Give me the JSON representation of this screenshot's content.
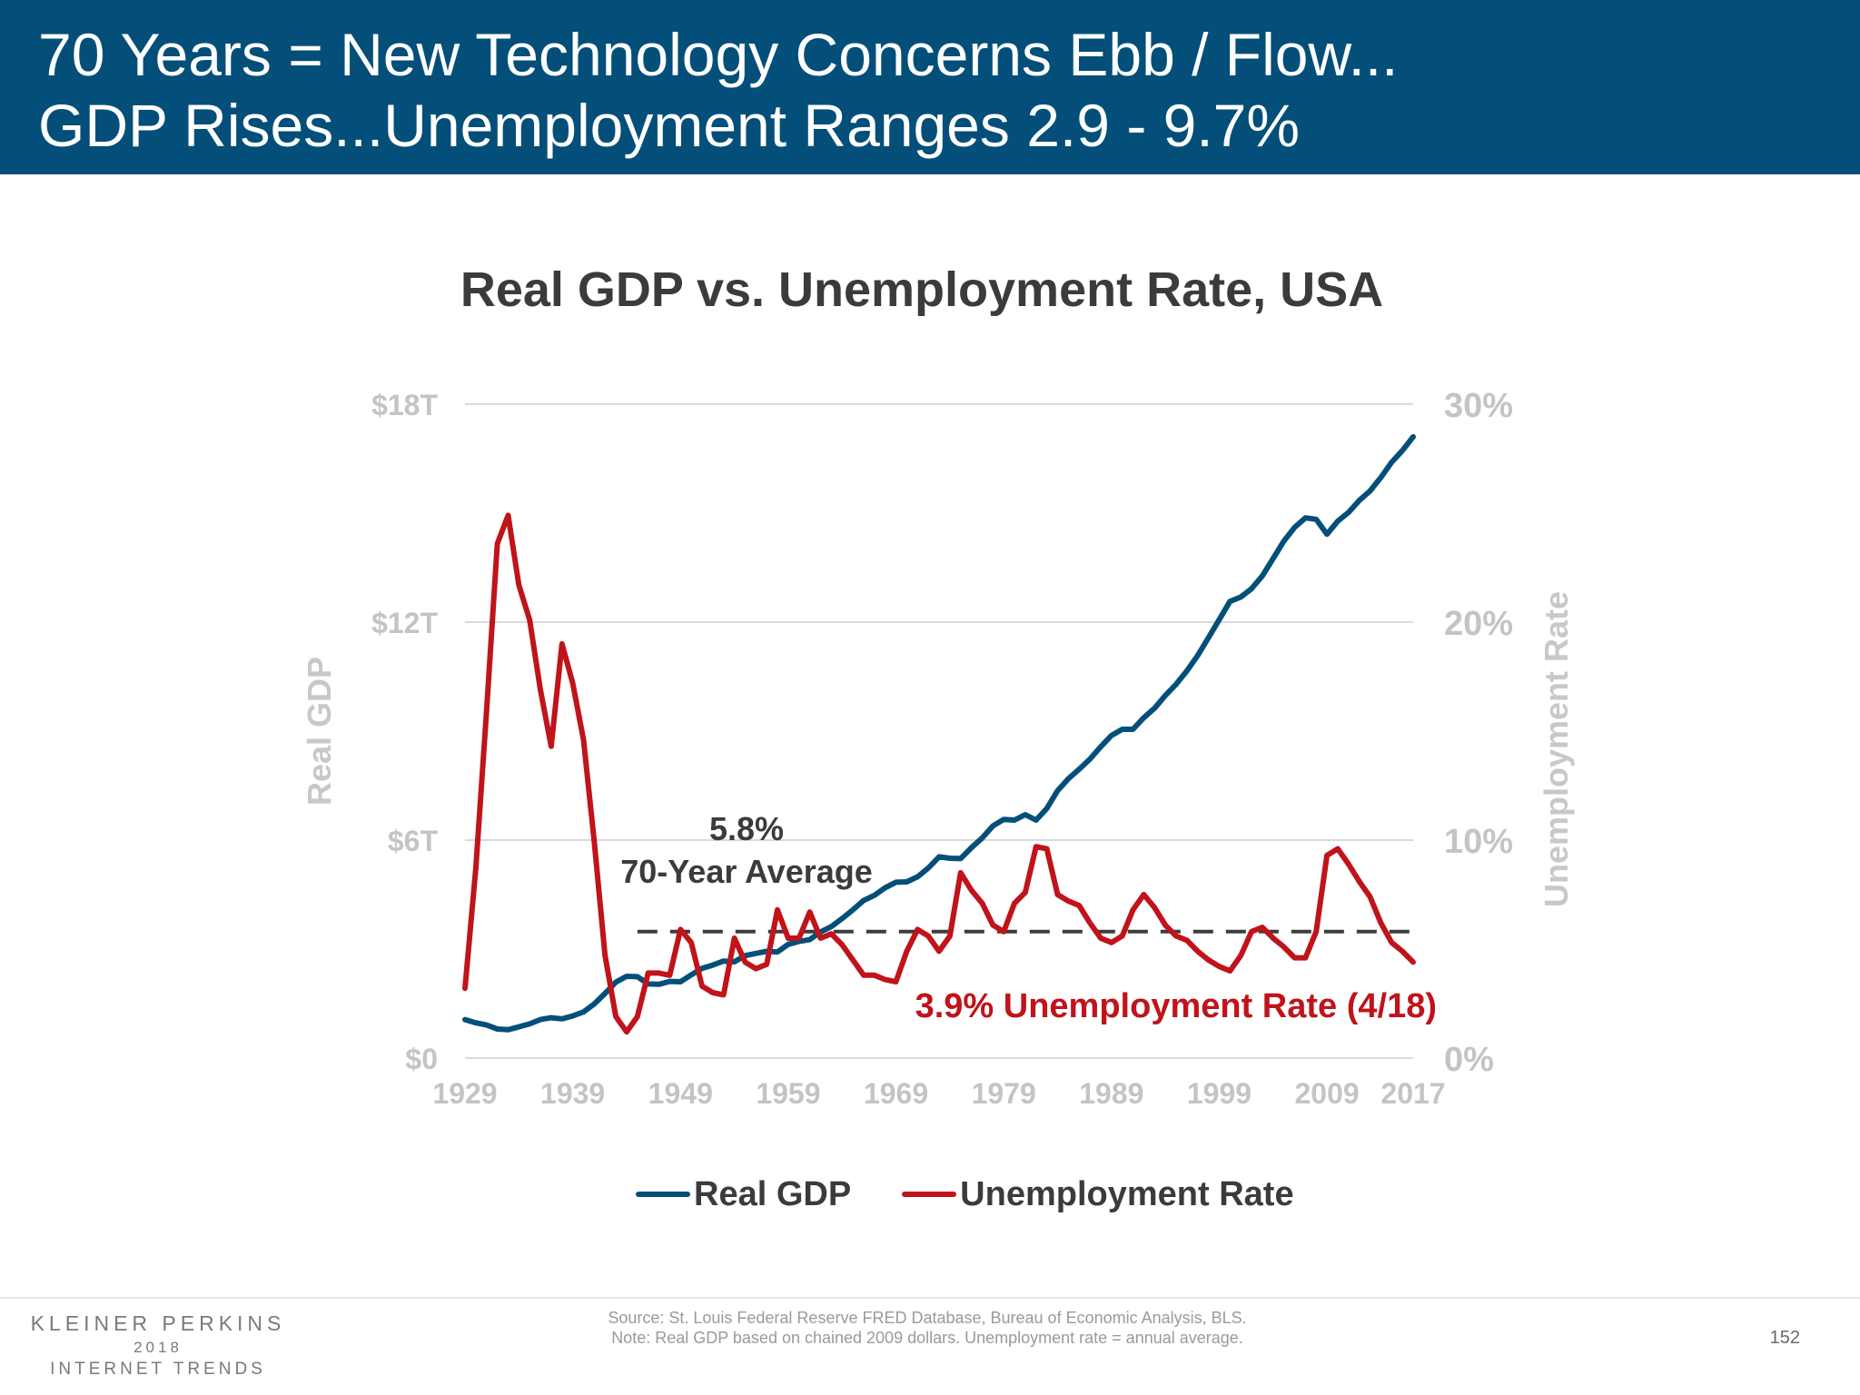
{
  "header": {
    "line1": "70 Years = New Technology Concerns Ebb / Flow...",
    "line2": "GDP Rises...Unemployment Ranges 2.9 - 9.7%",
    "background_color": "#034f79"
  },
  "chart_data": {
    "type": "line",
    "title": "Real GDP vs. Unemployment Rate, USA",
    "xlabel": "",
    "ylabel": "Real GDP",
    "y2label": "Unemployment Rate",
    "x_tick_labels": [
      "1929",
      "1939",
      "1949",
      "1959",
      "1969",
      "1979",
      "1989",
      "1999",
      "2009",
      "2017"
    ],
    "xlim": [
      1929,
      2017
    ],
    "y_tick_labels": [
      "$0",
      "$6T",
      "$12T",
      "$18T"
    ],
    "y_ticks": [
      0,
      6,
      12,
      18
    ],
    "ylim": [
      0,
      18
    ],
    "y2_tick_labels": [
      "0%",
      "10%",
      "20%",
      "30%"
    ],
    "y2_ticks": [
      0,
      10,
      20,
      30
    ],
    "y2lim": [
      0,
      30
    ],
    "grid": true,
    "legend_position": "bottom-center",
    "series": [
      {
        "name": "Real GDP",
        "axis": "left",
        "unit": "trillions of chained 2009 dollars",
        "color": "#034f79",
        "x": [
          1929,
          1930,
          1931,
          1932,
          1933,
          1934,
          1935,
          1936,
          1937,
          1938,
          1939,
          1940,
          1941,
          1942,
          1943,
          1944,
          1945,
          1946,
          1947,
          1948,
          1949,
          1950,
          1951,
          1952,
          1953,
          1954,
          1955,
          1956,
          1957,
          1958,
          1959,
          1960,
          1961,
          1962,
          1963,
          1964,
          1965,
          1966,
          1967,
          1968,
          1969,
          1970,
          1971,
          1972,
          1973,
          1974,
          1975,
          1976,
          1977,
          1978,
          1979,
          1980,
          1981,
          1982,
          1983,
          1984,
          1985,
          1986,
          1987,
          1988,
          1989,
          1990,
          1991,
          1992,
          1993,
          1994,
          1995,
          1996,
          1997,
          1998,
          1999,
          2000,
          2001,
          2002,
          2003,
          2004,
          2005,
          2006,
          2007,
          2008,
          2009,
          2010,
          2011,
          2012,
          2013,
          2014,
          2015,
          2016,
          2017
        ],
        "values": [
          1.06,
          0.97,
          0.91,
          0.8,
          0.78,
          0.86,
          0.94,
          1.06,
          1.11,
          1.08,
          1.16,
          1.27,
          1.49,
          1.78,
          2.09,
          2.25,
          2.24,
          2.04,
          2.03,
          2.11,
          2.1,
          2.29,
          2.47,
          2.56,
          2.67,
          2.65,
          2.82,
          2.88,
          2.94,
          2.92,
          3.13,
          3.21,
          3.26,
          3.47,
          3.62,
          3.84,
          4.08,
          4.34,
          4.48,
          4.69,
          4.84,
          4.85,
          4.99,
          5.23,
          5.54,
          5.5,
          5.49,
          5.79,
          6.06,
          6.39,
          6.57,
          6.55,
          6.7,
          6.55,
          6.87,
          7.36,
          7.69,
          7.95,
          8.23,
          8.57,
          8.88,
          9.05,
          9.05,
          9.37,
          9.63,
          9.98,
          10.29,
          10.66,
          11.08,
          11.57,
          12.07,
          12.57,
          12.69,
          12.92,
          13.27,
          13.75,
          14.23,
          14.61,
          14.87,
          14.83,
          14.42,
          14.78,
          15.02,
          15.35,
          15.61,
          15.98,
          16.4,
          16.72,
          17.1
        ]
      },
      {
        "name": "Unemployment Rate",
        "axis": "right",
        "unit": "percent",
        "color": "#c0131a",
        "x": [
          1929,
          1930,
          1931,
          1932,
          1933,
          1934,
          1935,
          1936,
          1937,
          1938,
          1939,
          1940,
          1941,
          1942,
          1943,
          1944,
          1945,
          1946,
          1947,
          1948,
          1949,
          1950,
          1951,
          1952,
          1953,
          1954,
          1955,
          1956,
          1957,
          1958,
          1959,
          1960,
          1961,
          1962,
          1963,
          1964,
          1965,
          1966,
          1967,
          1968,
          1969,
          1970,
          1971,
          1972,
          1973,
          1974,
          1975,
          1976,
          1977,
          1978,
          1979,
          1980,
          1981,
          1982,
          1983,
          1984,
          1985,
          1986,
          1987,
          1988,
          1989,
          1990,
          1991,
          1992,
          1993,
          1994,
          1995,
          1996,
          1997,
          1998,
          1999,
          2000,
          2001,
          2002,
          2003,
          2004,
          2005,
          2006,
          2007,
          2008,
          2009,
          2010,
          2011,
          2012,
          2013,
          2014,
          2015,
          2016,
          2017
        ],
        "values": [
          3.2,
          8.7,
          15.9,
          23.6,
          24.9,
          21.7,
          20.1,
          16.9,
          14.3,
          19.0,
          17.2,
          14.6,
          9.9,
          4.7,
          1.9,
          1.2,
          1.9,
          3.9,
          3.9,
          3.8,
          5.9,
          5.3,
          3.3,
          3.0,
          2.9,
          5.5,
          4.4,
          4.1,
          4.3,
          6.8,
          5.5,
          5.5,
          6.7,
          5.5,
          5.7,
          5.2,
          4.5,
          3.8,
          3.8,
          3.6,
          3.5,
          4.9,
          5.9,
          5.6,
          4.9,
          5.6,
          8.5,
          7.7,
          7.1,
          6.1,
          5.8,
          7.1,
          7.6,
          9.7,
          9.6,
          7.5,
          7.2,
          7.0,
          6.2,
          5.5,
          5.3,
          5.6,
          6.8,
          7.5,
          6.9,
          6.1,
          5.6,
          5.4,
          4.9,
          4.5,
          4.2,
          4.0,
          4.7,
          5.8,
          6.0,
          5.5,
          5.1,
          4.6,
          4.6,
          5.8,
          9.3,
          9.6,
          8.9,
          8.1,
          7.4,
          6.2,
          5.3,
          4.9,
          4.4
        ]
      }
    ],
    "reference_line": {
      "value": 5.8,
      "axis": "right",
      "style": "dashed",
      "x_range": [
        1945,
        2017
      ],
      "label_line1": "5.8%",
      "label_line2": "70-Year Average"
    },
    "annotation": "3.9% Unemployment Rate (4/18)"
  },
  "legend": {
    "items": [
      {
        "label": "Real GDP",
        "color": "#034f79"
      },
      {
        "label": "Unemployment Rate",
        "color": "#c0131a"
      }
    ]
  },
  "footer": {
    "logo_line1": "KLEINER PERKINS",
    "logo_line2": "2018",
    "logo_line3": "INTERNET TRENDS",
    "source": "Source: St. Louis Federal Reserve FRED Database, Bureau of Economic Analysis, BLS.",
    "note": "Note: Real GDP based on chained 2009 dollars. Unemployment rate = annual average.",
    "page_number": "152"
  }
}
